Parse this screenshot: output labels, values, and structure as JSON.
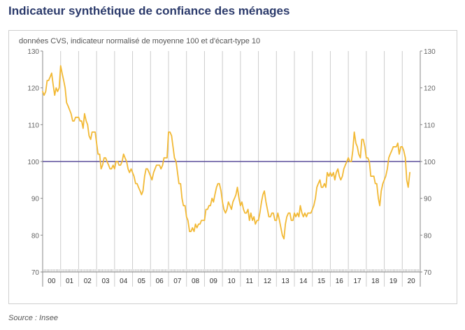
{
  "title": "Indicateur synthétique de confiance des ménages",
  "source": "Source : Insee",
  "chart_data": {
    "type": "line",
    "subtitle": "données CVS, indicateur normalisé de moyenne 100 et d'écart-type 10",
    "ylim": [
      70,
      130
    ],
    "yticks": [
      70,
      80,
      90,
      100,
      110,
      120,
      130
    ],
    "reference_line": 100,
    "x_categories": [
      "00",
      "01",
      "02",
      "03",
      "04",
      "05",
      "06",
      "07",
      "08",
      "09",
      "10",
      "11",
      "12",
      "13",
      "14",
      "15",
      "16",
      "17",
      "18",
      "19",
      "20"
    ],
    "x_start_year": 2000,
    "x_end_year": 2021,
    "grid": "vertical lines at each year",
    "series": [
      {
        "color": "#f2b935",
        "points": [
          [
            2000.0,
            119
          ],
          [
            2000.08,
            118
          ],
          [
            2000.17,
            119
          ],
          [
            2000.25,
            122
          ],
          [
            2000.33,
            122
          ],
          [
            2000.42,
            123
          ],
          [
            2000.5,
            124
          ],
          [
            2000.58,
            121
          ],
          [
            2000.67,
            118
          ],
          [
            2000.75,
            120
          ],
          [
            2000.83,
            119
          ],
          [
            2000.92,
            120
          ],
          [
            2001.0,
            126
          ],
          [
            2001.08,
            124
          ],
          [
            2001.17,
            122
          ],
          [
            2001.25,
            120
          ],
          [
            2001.33,
            116
          ],
          [
            2001.42,
            115
          ],
          [
            2001.5,
            114
          ],
          [
            2001.58,
            113
          ],
          [
            2001.67,
            111
          ],
          [
            2001.75,
            111
          ],
          [
            2001.83,
            112
          ],
          [
            2001.92,
            112
          ],
          [
            2002.0,
            112
          ],
          [
            2002.08,
            111
          ],
          [
            2002.17,
            111
          ],
          [
            2002.25,
            109
          ],
          [
            2002.33,
            113
          ],
          [
            2002.42,
            111
          ],
          [
            2002.5,
            110
          ],
          [
            2002.58,
            107
          ],
          [
            2002.67,
            106
          ],
          [
            2002.75,
            108
          ],
          [
            2002.83,
            108
          ],
          [
            2002.92,
            108
          ],
          [
            2003.0,
            105
          ],
          [
            2003.08,
            102
          ],
          [
            2003.17,
            102
          ],
          [
            2003.25,
            98
          ],
          [
            2003.33,
            99
          ],
          [
            2003.42,
            101
          ],
          [
            2003.5,
            101
          ],
          [
            2003.58,
            100
          ],
          [
            2003.67,
            99
          ],
          [
            2003.75,
            98
          ],
          [
            2003.83,
            98
          ],
          [
            2003.92,
            99
          ],
          [
            2004.0,
            98
          ],
          [
            2004.08,
            100
          ],
          [
            2004.17,
            100
          ],
          [
            2004.25,
            99
          ],
          [
            2004.33,
            99
          ],
          [
            2004.42,
            100
          ],
          [
            2004.5,
            102
          ],
          [
            2004.58,
            101
          ],
          [
            2004.67,
            100
          ],
          [
            2004.75,
            98
          ],
          [
            2004.83,
            97
          ],
          [
            2004.92,
            98
          ],
          [
            2005.0,
            97
          ],
          [
            2005.08,
            96
          ],
          [
            2005.17,
            94
          ],
          [
            2005.25,
            94
          ],
          [
            2005.33,
            93
          ],
          [
            2005.42,
            92
          ],
          [
            2005.5,
            91
          ],
          [
            2005.58,
            92
          ],
          [
            2005.67,
            96
          ],
          [
            2005.75,
            98
          ],
          [
            2005.83,
            98
          ],
          [
            2005.92,
            97
          ],
          [
            2006.0,
            96
          ],
          [
            2006.08,
            95
          ],
          [
            2006.17,
            97
          ],
          [
            2006.25,
            98
          ],
          [
            2006.33,
            99
          ],
          [
            2006.42,
            99
          ],
          [
            2006.5,
            99
          ],
          [
            2006.58,
            98
          ],
          [
            2006.67,
            99
          ],
          [
            2006.75,
            101
          ],
          [
            2006.83,
            101
          ],
          [
            2006.92,
            101
          ],
          [
            2007.0,
            108
          ],
          [
            2007.08,
            108
          ],
          [
            2007.17,
            107
          ],
          [
            2007.25,
            104
          ],
          [
            2007.33,
            101
          ],
          [
            2007.42,
            100
          ],
          [
            2007.5,
            97
          ],
          [
            2007.58,
            94
          ],
          [
            2007.67,
            94
          ],
          [
            2007.75,
            90
          ],
          [
            2007.83,
            88
          ],
          [
            2007.92,
            88
          ],
          [
            2008.0,
            85
          ],
          [
            2008.08,
            84
          ],
          [
            2008.17,
            81
          ],
          [
            2008.25,
            81
          ],
          [
            2008.33,
            82
          ],
          [
            2008.42,
            81
          ],
          [
            2008.5,
            83
          ],
          [
            2008.58,
            82
          ],
          [
            2008.67,
            83
          ],
          [
            2008.75,
            83
          ],
          [
            2008.83,
            84
          ],
          [
            2008.92,
            84
          ],
          [
            2009.0,
            84
          ],
          [
            2009.08,
            87
          ],
          [
            2009.17,
            87
          ],
          [
            2009.25,
            88
          ],
          [
            2009.33,
            88
          ],
          [
            2009.42,
            90
          ],
          [
            2009.5,
            89
          ],
          [
            2009.58,
            91
          ],
          [
            2009.67,
            93
          ],
          [
            2009.75,
            94
          ],
          [
            2009.83,
            94
          ],
          [
            2009.92,
            92
          ],
          [
            2010.0,
            89
          ],
          [
            2010.08,
            87
          ],
          [
            2010.17,
            86
          ],
          [
            2010.25,
            87
          ],
          [
            2010.33,
            89
          ],
          [
            2010.42,
            88
          ],
          [
            2010.5,
            87
          ],
          [
            2010.58,
            89
          ],
          [
            2010.67,
            90
          ],
          [
            2010.75,
            91
          ],
          [
            2010.83,
            93
          ],
          [
            2010.92,
            90
          ],
          [
            2011.0,
            88
          ],
          [
            2011.08,
            89
          ],
          [
            2011.17,
            87
          ],
          [
            2011.25,
            86
          ],
          [
            2011.33,
            86
          ],
          [
            2011.42,
            87
          ],
          [
            2011.5,
            84
          ],
          [
            2011.58,
            86
          ],
          [
            2011.67,
            84
          ],
          [
            2011.75,
            85
          ],
          [
            2011.83,
            83
          ],
          [
            2011.92,
            84
          ],
          [
            2012.0,
            84
          ],
          [
            2012.08,
            86
          ],
          [
            2012.17,
            89
          ],
          [
            2012.25,
            91
          ],
          [
            2012.33,
            92
          ],
          [
            2012.42,
            89
          ],
          [
            2012.5,
            87
          ],
          [
            2012.58,
            85
          ],
          [
            2012.67,
            85
          ],
          [
            2012.75,
            86
          ],
          [
            2012.83,
            86
          ],
          [
            2012.92,
            84
          ],
          [
            2013.0,
            84
          ],
          [
            2013.08,
            86
          ],
          [
            2013.17,
            84
          ],
          [
            2013.25,
            82
          ],
          [
            2013.33,
            80
          ],
          [
            2013.42,
            79
          ],
          [
            2013.5,
            83
          ],
          [
            2013.58,
            85
          ],
          [
            2013.67,
            86
          ],
          [
            2013.75,
            86
          ],
          [
            2013.83,
            84
          ],
          [
            2013.92,
            84
          ],
          [
            2014.0,
            86
          ],
          [
            2014.08,
            85
          ],
          [
            2014.17,
            86
          ],
          [
            2014.25,
            85
          ],
          [
            2014.33,
            88
          ],
          [
            2014.42,
            86
          ],
          [
            2014.5,
            85
          ],
          [
            2014.58,
            86
          ],
          [
            2014.67,
            85
          ],
          [
            2014.75,
            86
          ],
          [
            2014.83,
            86
          ],
          [
            2014.92,
            86
          ],
          [
            2015.0,
            87
          ],
          [
            2015.08,
            88
          ],
          [
            2015.17,
            90
          ],
          [
            2015.25,
            93
          ],
          [
            2015.33,
            94
          ],
          [
            2015.42,
            95
          ],
          [
            2015.5,
            93
          ],
          [
            2015.58,
            93
          ],
          [
            2015.67,
            94
          ],
          [
            2015.75,
            93
          ],
          [
            2015.83,
            97
          ],
          [
            2015.92,
            96
          ],
          [
            2016.0,
            97
          ],
          [
            2016.08,
            96
          ],
          [
            2016.17,
            97
          ],
          [
            2016.25,
            95
          ],
          [
            2016.33,
            97
          ],
          [
            2016.42,
            98
          ],
          [
            2016.5,
            96
          ],
          [
            2016.58,
            95
          ],
          [
            2016.67,
            96
          ],
          [
            2016.75,
            98
          ],
          [
            2016.83,
            99
          ],
          [
            2016.92,
            100
          ],
          [
            2017.0,
            101
          ],
          [
            2017.08,
            100
          ],
          [
            2017.17,
            100
          ],
          [
            2017.25,
            103
          ],
          [
            2017.33,
            108
          ],
          [
            2017.42,
            105
          ],
          [
            2017.5,
            104
          ],
          [
            2017.58,
            102
          ],
          [
            2017.67,
            101
          ],
          [
            2017.75,
            106
          ],
          [
            2017.83,
            106
          ],
          [
            2017.92,
            104
          ],
          [
            2018.0,
            101
          ],
          [
            2018.08,
            101
          ],
          [
            2018.17,
            100
          ],
          [
            2018.25,
            96
          ],
          [
            2018.33,
            96
          ],
          [
            2018.42,
            96
          ],
          [
            2018.5,
            94
          ],
          [
            2018.58,
            94
          ],
          [
            2018.67,
            90
          ],
          [
            2018.75,
            88
          ],
          [
            2018.83,
            92
          ],
          [
            2018.92,
            94
          ],
          [
            2019.0,
            95
          ],
          [
            2019.08,
            96
          ],
          [
            2019.17,
            98
          ],
          [
            2019.25,
            101
          ],
          [
            2019.33,
            102
          ],
          [
            2019.42,
            103
          ],
          [
            2019.5,
            104
          ],
          [
            2019.58,
            104
          ],
          [
            2019.67,
            104
          ],
          [
            2019.75,
            105
          ],
          [
            2019.83,
            102
          ],
          [
            2019.92,
            104
          ],
          [
            2020.0,
            104
          ],
          [
            2020.08,
            103
          ],
          [
            2020.17,
            101
          ],
          [
            2020.25,
            95
          ],
          [
            2020.33,
            93
          ],
          [
            2020.42,
            97
          ]
        ]
      }
    ]
  }
}
